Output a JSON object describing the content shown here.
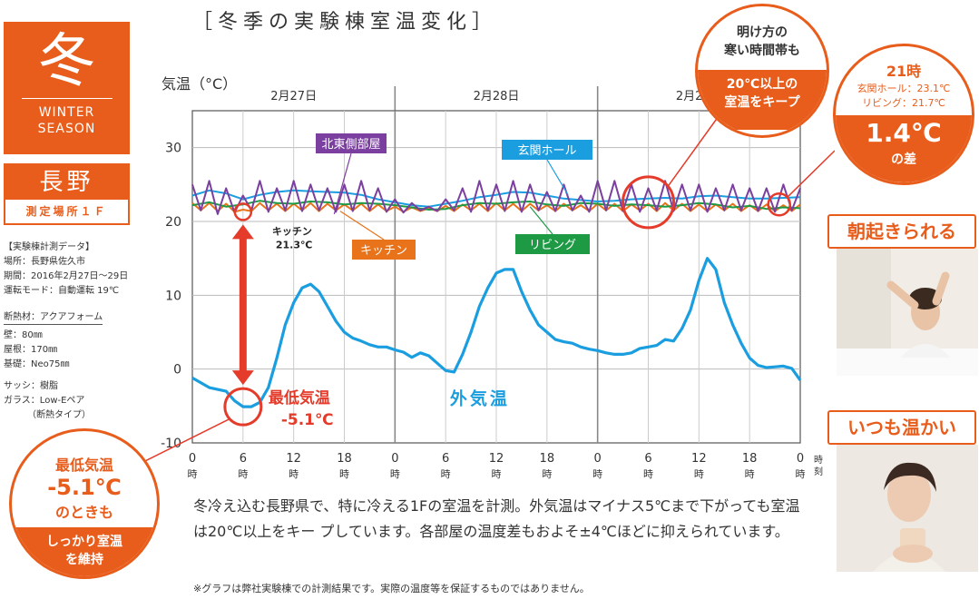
{
  "title": "［冬季の実験棟室温変化］",
  "season": {
    "kanji": "冬",
    "en_line1": "WINTER",
    "en_line2": "SEASON"
  },
  "place": {
    "name": "長野",
    "sub": "測定場所１Ｆ"
  },
  "info": {
    "heading": "【実験棟計測データ】",
    "location": "場所：長野県佐久市",
    "period": "期間：2016年2月27日～29日",
    "mode": "運転モード：自動運転 19℃",
    "insulation": "断熱材：アクアフォーム",
    "wall": "壁：80㎜",
    "roof": "屋根：170㎜",
    "foundation": "基礎：Neo75㎜",
    "sash": "サッシ：樹脂",
    "glass1": "ガラス：Low-Eペア",
    "glass2": "（断熱タイプ）"
  },
  "callouts": {
    "dawn": {
      "line1": "明け方の",
      "line2": "寒い時間帯も",
      "line3": "20℃以上の",
      "line4": "室温をキープ"
    },
    "diff": {
      "time": "21時",
      "hall": "玄関ホール：23.1℃",
      "living": "リビング：21.7℃",
      "value": "1.4℃",
      "suffix": "の差"
    },
    "min": {
      "line1": "最低気温",
      "line2": "-5.1℃",
      "line3": "のときも",
      "line4": "しっかり室温",
      "line5": "を維持"
    }
  },
  "photos": {
    "label1": "朝起きられる",
    "label2": "いつも温かい"
  },
  "description": "冬冷え込む長野県で、特に冷える1Fの室温を計測。外気温はマイナス5℃まで下がっても室温は20℃以上をキー プしています。各部屋の温度差もおよそ±4℃ほどに抑えられています。",
  "note": "※グラフは弊社実験棟での計測結果です。実際の温度等を保証するものではありません。",
  "chart_data": {
    "type": "line",
    "ylabel": "気温（°C）",
    "xlabel": "時刻",
    "ylim": [
      -10,
      35
    ],
    "yticks": [
      30,
      20,
      10,
      0,
      -10
    ],
    "xlim": [
      0,
      72
    ],
    "xticks": [
      0,
      6,
      12,
      18,
      24,
      30,
      36,
      42,
      48,
      54,
      60,
      66,
      72
    ],
    "xtick_labels": [
      "0時",
      "6時",
      "12時",
      "18時",
      "0時",
      "6時",
      "12時",
      "18時",
      "0時",
      "6時",
      "12時",
      "18時",
      "0時"
    ],
    "day_labels": [
      "2月27日",
      "2月28日",
      "2月29日"
    ],
    "grid": true,
    "series": [
      {
        "name": "外気温",
        "color": "#1a9ee0",
        "x": [
          0,
          2,
          4,
          5,
          6,
          7,
          8,
          9,
          10,
          11,
          12,
          13,
          14,
          15,
          16,
          17,
          18,
          19,
          20,
          21,
          22,
          23,
          24,
          25,
          26,
          27,
          28,
          29,
          30,
          31,
          32,
          33,
          34,
          35,
          36,
          37,
          38,
          39,
          40,
          41,
          42,
          43,
          44,
          45,
          46,
          47,
          48,
          49,
          50,
          51,
          52,
          53,
          54,
          55,
          56,
          57,
          58,
          59,
          60,
          61,
          62,
          63,
          64,
          65,
          66,
          67,
          68,
          69,
          70,
          71,
          72
        ],
        "y": [
          -1.2,
          -2.5,
          -3,
          -4.3,
          -5.1,
          -5.1,
          -4.5,
          -2.5,
          1.5,
          6,
          9,
          11,
          11.5,
          10.5,
          8.5,
          6.5,
          5,
          4.2,
          3.8,
          3.3,
          3,
          3,
          2.6,
          2.3,
          1.6,
          2.2,
          1.8,
          0.8,
          -0.2,
          -0.4,
          2,
          5,
          8.5,
          11,
          13,
          13.5,
          13.5,
          10.5,
          8,
          6,
          5,
          4,
          3.7,
          3.5,
          3,
          2.7,
          2.5,
          2.2,
          2,
          2,
          2.2,
          2.8,
          3,
          3.2,
          4,
          3.8,
          5.5,
          8,
          12,
          15,
          13.5,
          9,
          6,
          3.5,
          1.5,
          0.5,
          0.2,
          0.3,
          0.4,
          0.1,
          -1.5
        ]
      },
      {
        "name": "北東側部屋",
        "color": "#7b3fa0",
        "x": [
          0,
          1,
          2,
          3,
          4,
          5,
          6,
          7,
          8,
          9,
          10,
          11,
          12,
          13,
          14,
          15,
          16,
          17,
          18,
          19,
          20,
          21,
          22,
          23,
          24,
          25,
          26,
          27,
          28,
          29,
          30,
          31,
          32,
          33,
          34,
          35,
          36,
          37,
          38,
          39,
          40,
          41,
          42,
          43,
          44,
          45,
          46,
          47,
          48,
          49,
          50,
          51,
          52,
          53,
          54,
          55,
          56,
          57,
          58,
          59,
          60,
          61,
          62,
          63,
          64,
          65,
          66,
          67,
          68,
          69,
          70,
          71,
          72
        ],
        "y": [
          25,
          21.5,
          25.5,
          21,
          24.5,
          21.2,
          23.5,
          21.5,
          25.5,
          21.3,
          24.5,
          21.5,
          25.5,
          21.4,
          25,
          21.5,
          24.5,
          21.3,
          25,
          21.4,
          25.5,
          21.5,
          24.5,
          21.3,
          23,
          21.2,
          22.5,
          21.5,
          22,
          21.4,
          23,
          21.5,
          24.5,
          21.3,
          25.5,
          21.5,
          25,
          21.4,
          25.5,
          21.3,
          25,
          21.5,
          24,
          21.4,
          25,
          21.5,
          23.5,
          21.3,
          25.5,
          21.5,
          25.5,
          21.4,
          25,
          21.3,
          24.5,
          21.5,
          25.5,
          21.4,
          25,
          21.5,
          25,
          21.3,
          24.5,
          21.5,
          25,
          21.5,
          24.5,
          21.4,
          24.5,
          21.3,
          25,
          21.5,
          24.5
        ]
      },
      {
        "name": "玄関ホール",
        "color": "#1a9ee0",
        "x": [
          0,
          2,
          4,
          6,
          8,
          10,
          12,
          14,
          16,
          18,
          20,
          22,
          24,
          26,
          28,
          30,
          32,
          34,
          36,
          38,
          40,
          42,
          44,
          46,
          48,
          50,
          52,
          54,
          56,
          58,
          60,
          62,
          64,
          66,
          68,
          70,
          72
        ],
        "y": [
          23.5,
          24.2,
          23.8,
          23,
          23.6,
          24,
          24.2,
          24.1,
          24,
          23.9,
          23.6,
          23,
          22.6,
          22.2,
          22,
          22.4,
          22.8,
          23.3,
          23.6,
          24,
          23.9,
          23.5,
          23.1,
          22.9,
          22.7,
          22.8,
          23,
          23.1,
          23.2,
          23.1,
          23.4,
          23.5,
          23.3,
          23.1,
          23.1,
          23.2,
          23.3
        ]
      },
      {
        "name": "リビング",
        "color": "#1e9a45",
        "x": [
          0,
          2,
          4,
          6,
          8,
          10,
          12,
          14,
          16,
          18,
          20,
          22,
          24,
          26,
          28,
          30,
          32,
          34,
          36,
          38,
          40,
          42,
          44,
          46,
          48,
          50,
          52,
          54,
          56,
          58,
          60,
          62,
          64,
          66,
          68,
          70,
          72
        ],
        "y": [
          22.2,
          22.6,
          22,
          22.3,
          22.8,
          22.5,
          22.4,
          22.7,
          22.6,
          22.3,
          22.5,
          22.4,
          22.2,
          21.9,
          21.6,
          21.7,
          22.2,
          22.5,
          22.4,
          22.6,
          22.7,
          22.3,
          22.1,
          22.5,
          22.4,
          22.1,
          22.3,
          22.2,
          22,
          22.2,
          22.5,
          22.3,
          21.9,
          22.1,
          21.7,
          21.9,
          21.8
        ]
      },
      {
        "name": "キッチン",
        "color": "#e8731b",
        "x": [
          0,
          1,
          2,
          3,
          4,
          5,
          6,
          7,
          8,
          9,
          10,
          11,
          12,
          13,
          14,
          15,
          16,
          17,
          18,
          19,
          20,
          21,
          22,
          23,
          24,
          25,
          26,
          27,
          28,
          29,
          30,
          31,
          32,
          33,
          34,
          35,
          36,
          37,
          38,
          39,
          40,
          41,
          42,
          43,
          44,
          45,
          46,
          47,
          48,
          49,
          50,
          51,
          52,
          53,
          54,
          55,
          56,
          57,
          58,
          59,
          60,
          61,
          62,
          63,
          64,
          65,
          66,
          67,
          68,
          69,
          70,
          71,
          72
        ],
        "y": [
          22.5,
          21.5,
          22.5,
          21.4,
          22.4,
          21.3,
          21.6,
          21.4,
          22.5,
          21.5,
          22.4,
          21.4,
          22.4,
          21.5,
          22.5,
          21.4,
          22.4,
          21.5,
          22.3,
          21.5,
          22.4,
          21.4,
          22.3,
          21.4,
          22,
          21.3,
          21.9,
          21.4,
          21.8,
          21.4,
          22.1,
          21.4,
          22.3,
          21.5,
          22.4,
          21.4,
          22.5,
          21.5,
          22.4,
          21.4,
          22.4,
          21.5,
          22.2,
          21.4,
          22.4,
          21.5,
          22.2,
          21.4,
          22.4,
          21.5,
          22.4,
          21.4,
          22.3,
          21.5,
          22.4,
          21.4,
          22.5,
          21.5,
          22.4,
          21.4,
          22.3,
          21.4,
          22.3,
          21.5,
          22.4,
          21.4,
          22.2,
          21.4,
          22.3,
          21.4,
          22.2,
          21.4,
          22.3
        ]
      }
    ],
    "annotations": {
      "kitchen_min": {
        "line1": "キッチン",
        "line2": "21.3℃",
        "x": 6,
        "y": 21.3
      },
      "outdoor_min": {
        "line1": "最低気温",
        "line2": "-5.1℃",
        "x": 6,
        "y": -5.1
      },
      "outdoor_label": "外気温"
    }
  }
}
